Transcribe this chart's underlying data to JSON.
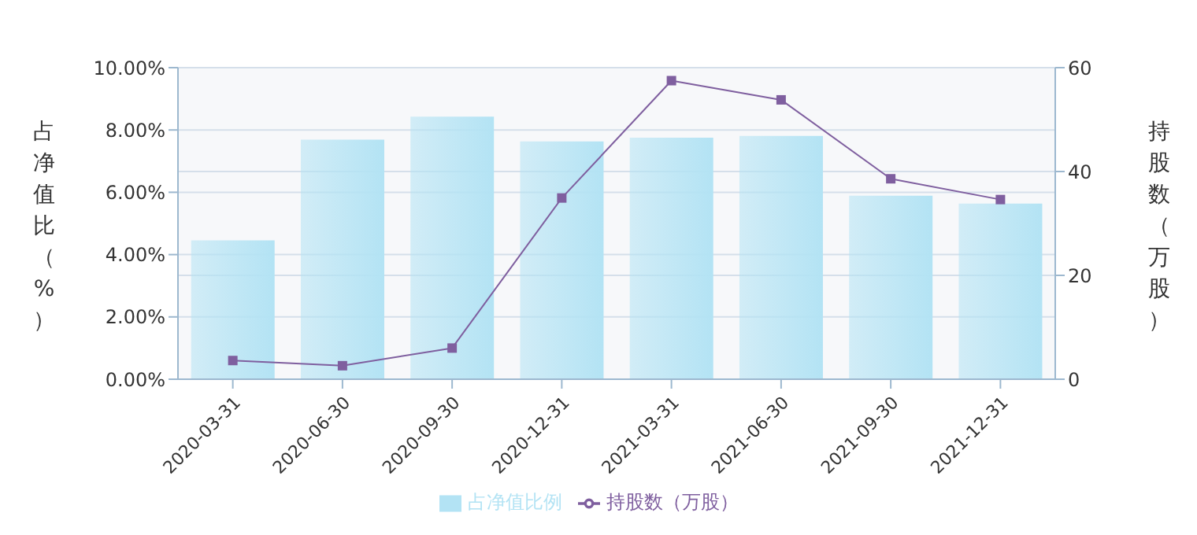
{
  "chart_data": {
    "type": "bar",
    "categories": [
      "2020-03-31",
      "2020-06-30",
      "2020-09-30",
      "2020-12-31",
      "2021-03-31",
      "2021-06-30",
      "2021-09-30",
      "2021-12-31"
    ],
    "series": [
      {
        "name": "占净值比例",
        "color": "#b3e3f4",
        "values": [
          4.46,
          7.69,
          8.43,
          7.63,
          7.75,
          7.81,
          5.89,
          5.64
        ]
      },
      {
        "name": "持股数（万股）",
        "type": "line",
        "axis": "y2",
        "color": "#7f5f9f",
        "marker": "square",
        "values": [
          3.6,
          2.6,
          6.0,
          34.9,
          57.5,
          53.8,
          38.6,
          34.6
        ]
      }
    ],
    "ylabel": "占净值比（%）",
    "y2label": "持股数（万股）",
    "ylim": [
      0,
      10
    ],
    "yticks": [
      {
        "value": 0,
        "label": "0.00%"
      },
      {
        "value": 2,
        "label": "2.00%"
      },
      {
        "value": 4,
        "label": "4.00%"
      },
      {
        "value": 6,
        "label": "6.00%"
      },
      {
        "value": 8,
        "label": "8.00%"
      },
      {
        "value": 10,
        "label": "10.00%"
      }
    ],
    "y2lim": [
      0,
      60
    ],
    "y2ticks": [
      0,
      20,
      40,
      60
    ],
    "grid": "y",
    "legend": "bottom"
  }
}
